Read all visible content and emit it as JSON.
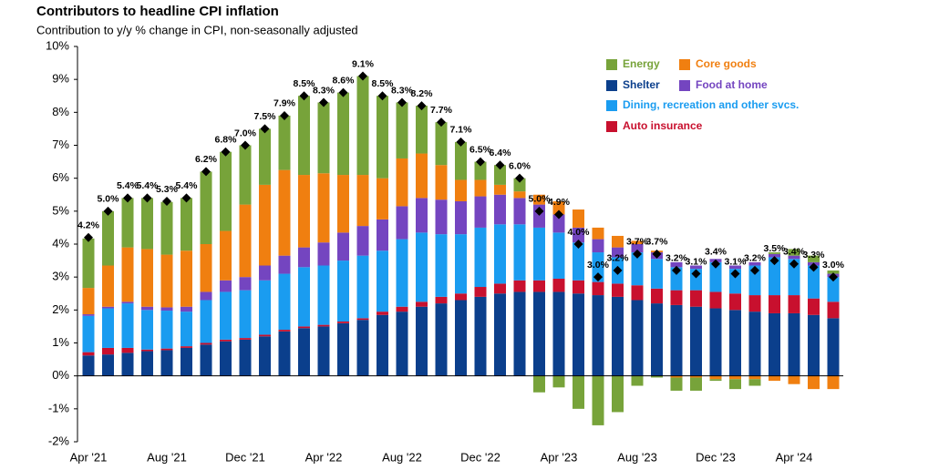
{
  "chart_data": {
    "type": "stacked-bar",
    "title": "Contributors to headline CPI inflation",
    "subtitle": "Contribution to y/y % change in CPI, non-seasonally adjusted",
    "categories": [
      "Apr '21",
      null,
      null,
      null,
      "Aug '21",
      null,
      null,
      null,
      "Dec '21",
      null,
      null,
      null,
      "Apr '22",
      null,
      null,
      null,
      "Aug '22",
      null,
      null,
      null,
      "Dec '22",
      null,
      null,
      null,
      "Apr '23",
      null,
      null,
      null,
      "Aug '23",
      null,
      null,
      null,
      "Dec '23",
      null,
      null,
      null,
      "Apr '24",
      null,
      null
    ],
    "ylim": [
      -2,
      10
    ],
    "yticks": [
      {
        "value": -2,
        "label": "-2%"
      },
      {
        "value": -1,
        "label": "-1%"
      },
      {
        "value": 0,
        "label": "0%"
      },
      {
        "value": 1,
        "label": "1%"
      },
      {
        "value": 2,
        "label": "2%"
      },
      {
        "value": 3,
        "label": "3%"
      },
      {
        "value": 4,
        "label": "4%"
      },
      {
        "value": 5,
        "label": "5%"
      },
      {
        "value": 6,
        "label": "6%"
      },
      {
        "value": 7,
        "label": "7%"
      },
      {
        "value": 8,
        "label": "8%"
      },
      {
        "value": 9,
        "label": "9%"
      },
      {
        "value": 10,
        "label": "10%"
      }
    ],
    "grid": false,
    "series": [
      {
        "name": "Shelter",
        "color": "#0b3f8c",
        "values": [
          0.62,
          0.65,
          0.7,
          0.75,
          0.78,
          0.85,
          0.95,
          1.05,
          1.1,
          1.2,
          1.35,
          1.45,
          1.5,
          1.6,
          1.7,
          1.85,
          1.95,
          2.1,
          2.2,
          2.3,
          2.4,
          2.5,
          2.55,
          2.55,
          2.55,
          2.5,
          2.45,
          2.4,
          2.3,
          2.2,
          2.15,
          2.1,
          2.05,
          2.0,
          1.95,
          1.9,
          1.9,
          1.85,
          1.75
        ]
      },
      {
        "name": "Auto insurance",
        "color": "#c8102e",
        "values": [
          0.1,
          0.2,
          0.15,
          0.05,
          0.05,
          0.05,
          0.05,
          0.05,
          0.05,
          0.05,
          0.05,
          0.05,
          0.05,
          0.05,
          0.05,
          0.1,
          0.15,
          0.15,
          0.2,
          0.2,
          0.3,
          0.3,
          0.35,
          0.35,
          0.4,
          0.4,
          0.4,
          0.4,
          0.45,
          0.45,
          0.45,
          0.5,
          0.5,
          0.5,
          0.5,
          0.55,
          0.55,
          0.5,
          0.5
        ]
      },
      {
        "name": "Dining,  recreation and other svcs.",
        "color": "#1a9cf0",
        "values": [
          1.1,
          1.2,
          1.35,
          1.2,
          1.15,
          1.05,
          1.3,
          1.45,
          1.45,
          1.65,
          1.7,
          1.8,
          1.8,
          1.85,
          1.9,
          1.85,
          2.05,
          2.1,
          1.9,
          1.8,
          1.8,
          1.8,
          1.7,
          1.6,
          1.4,
          1.15,
          0.9,
          0.8,
          1.0,
          0.9,
          0.7,
          0.65,
          0.9,
          0.75,
          0.9,
          1.15,
          1.1,
          1.0,
          0.75
        ]
      },
      {
        "name": "Food  at home",
        "color": "#7445c0",
        "values": [
          0.05,
          0.05,
          0.05,
          0.1,
          0.1,
          0.15,
          0.25,
          0.35,
          0.4,
          0.45,
          0.55,
          0.6,
          0.7,
          0.85,
          0.9,
          0.95,
          1.0,
          1.05,
          1.05,
          1.0,
          0.95,
          0.9,
          0.8,
          0.7,
          0.55,
          0.45,
          0.4,
          0.3,
          0.25,
          0.2,
          0.15,
          0.1,
          0.1,
          0.1,
          0.1,
          0.1,
          0.1,
          0.1,
          0.1
        ]
      },
      {
        "name": "Core goods",
        "color": "#f07f10",
        "values": [
          0.8,
          1.25,
          1.65,
          1.75,
          1.6,
          1.7,
          1.45,
          1.5,
          2.2,
          2.45,
          2.6,
          2.2,
          2.1,
          1.75,
          1.55,
          1.25,
          1.45,
          1.35,
          1.05,
          0.65,
          0.5,
          0.3,
          0.2,
          0.3,
          0.4,
          0.55,
          0.35,
          0.35,
          0.1,
          0.05,
          -0.05,
          -0.05,
          -0.1,
          -0.1,
          -0.1,
          -0.15,
          -0.25,
          -0.4,
          -0.4
        ]
      },
      {
        "name": "Energy",
        "color": "#77a33a",
        "values": [
          1.5,
          1.65,
          1.5,
          1.55,
          1.6,
          1.6,
          2.2,
          2.4,
          1.8,
          1.7,
          1.65,
          2.4,
          2.15,
          2.5,
          3.0,
          2.5,
          1.7,
          1.45,
          1.3,
          1.15,
          0.55,
          0.6,
          0.4,
          -0.5,
          -0.35,
          -1.0,
          -1.5,
          -1.1,
          -0.3,
          -0.05,
          -0.4,
          -0.4,
          -0.05,
          -0.3,
          -0.2,
          0.05,
          0.2,
          0.2,
          0.1
        ]
      }
    ],
    "headline": {
      "color": "#000000",
      "values": [
        4.2,
        5.0,
        5.4,
        5.4,
        5.3,
        5.4,
        6.2,
        6.8,
        7.0,
        7.5,
        7.9,
        8.5,
        8.3,
        8.6,
        9.1,
        8.5,
        8.3,
        8.2,
        7.7,
        7.1,
        6.5,
        6.4,
        6.0,
        5.0,
        4.9,
        4.0,
        3.0,
        3.2,
        3.7,
        3.7,
        3.2,
        3.1,
        3.4,
        3.1,
        3.2,
        3.5,
        3.4,
        3.3,
        3.0
      ],
      "value_labels": [
        "4.2%",
        "5.0%",
        "5.4%",
        "5.4%",
        "5.3%",
        "5.4%",
        "6.2%",
        "6.8%",
        "7.0%",
        "7.5%",
        "7.9%",
        "8.5%",
        "8.3%",
        "8.6%",
        "9.1%",
        "8.5%",
        "8.3%",
        "8.2%",
        "7.7%",
        "7.1%",
        "6.5%",
        "6.4%",
        "6.0%",
        "5.0%",
        "4.9%",
        "4.0%",
        "3.0%",
        "3.2%",
        "3.7%",
        "3.7%",
        "3.2%",
        "3.1%",
        "3.4%",
        "3.1%",
        "3.2%",
        "3.5%",
        "3.4%",
        "3.3%",
        "3.0%"
      ]
    }
  }
}
